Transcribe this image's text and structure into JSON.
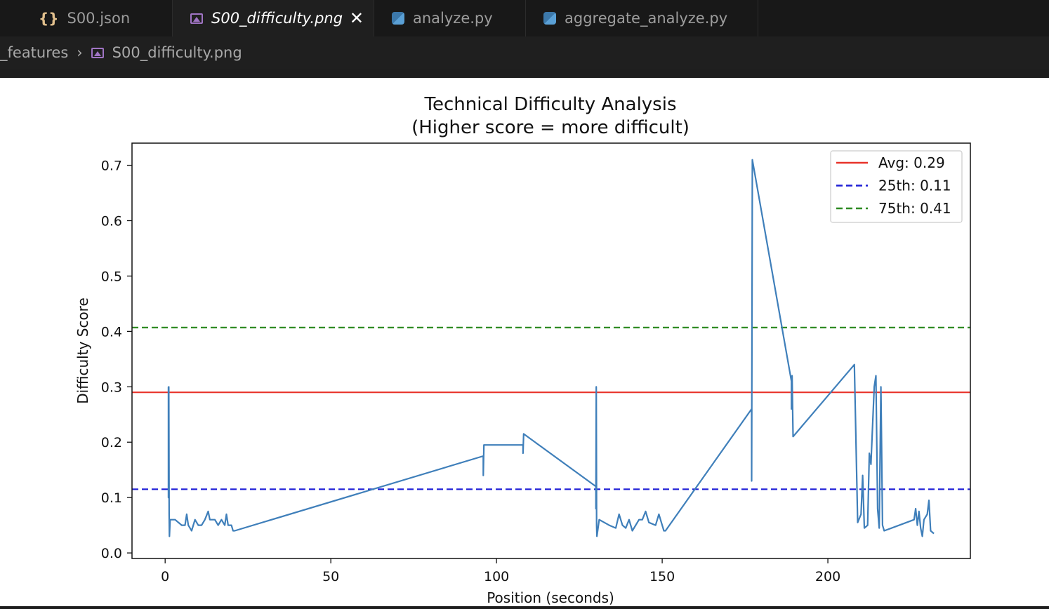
{
  "tabs": [
    {
      "label": "S00.json",
      "icon": "json-braces-icon",
      "active": false
    },
    {
      "label": "S00_difficulty.png",
      "icon": "image-file-icon",
      "active": true
    },
    {
      "label": "analyze.py",
      "icon": "python-icon",
      "active": false
    },
    {
      "label": "aggregate_analyze.py",
      "icon": "python-icon",
      "active": false
    }
  ],
  "breadcrumb": {
    "folder": "_features",
    "file": "S00_difficulty.png"
  },
  "chart_data": {
    "type": "line",
    "title": "Technical Difficulty Analysis",
    "subtitle": "(Higher score = more difficult)",
    "xlabel": "Position (seconds)",
    "ylabel": "Difficulty Score",
    "xlim": [
      -10,
      243
    ],
    "ylim": [
      -0.01,
      0.74
    ],
    "xticks": [
      "0",
      "50",
      "100",
      "150",
      "200"
    ],
    "yticks": [
      "0.0",
      "0.1",
      "0.2",
      "0.3",
      "0.4",
      "0.5",
      "0.6",
      "0.7"
    ],
    "legend_position": "top-right",
    "reference_lines": [
      {
        "label": "Avg: 0.29",
        "y": 0.29,
        "color": "#e8332a",
        "style": "solid"
      },
      {
        "label": "25th: 0.11",
        "y": 0.115,
        "color": "#1f1fd6",
        "style": "dashed"
      },
      {
        "label": "75th: 0.41",
        "y": 0.407,
        "color": "#2e8b22",
        "style": "dashed"
      }
    ],
    "series": [
      {
        "color": "#3f7fba",
        "points": [
          [
            1,
            0.3
          ],
          [
            1,
            0.1
          ],
          [
            1.1,
            0.3
          ],
          [
            1.2,
            0.07
          ],
          [
            1.3,
            0.03
          ],
          [
            1.5,
            0.06
          ],
          [
            3,
            0.06
          ],
          [
            5,
            0.05
          ],
          [
            6,
            0.05
          ],
          [
            6.5,
            0.07
          ],
          [
            7,
            0.05
          ],
          [
            8,
            0.04
          ],
          [
            9,
            0.06
          ],
          [
            10,
            0.05
          ],
          [
            11,
            0.05
          ],
          [
            12,
            0.06
          ],
          [
            13,
            0.075
          ],
          [
            13.5,
            0.06
          ],
          [
            15,
            0.06
          ],
          [
            16,
            0.05
          ],
          [
            17,
            0.06
          ],
          [
            18,
            0.05
          ],
          [
            18.5,
            0.07
          ],
          [
            19,
            0.05
          ],
          [
            20,
            0.05
          ],
          [
            20.5,
            0.04
          ],
          [
            21,
            0.04
          ],
          [
            96,
            0.175
          ],
          [
            96,
            0.14
          ],
          [
            96.2,
            0.195
          ],
          [
            108,
            0.195
          ],
          [
            108,
            0.18
          ],
          [
            108.2,
            0.215
          ],
          [
            130,
            0.12
          ],
          [
            130,
            0.08
          ],
          [
            130.1,
            0.3
          ],
          [
            130.2,
            0.05
          ],
          [
            130.3,
            0.03
          ],
          [
            131,
            0.06
          ],
          [
            134,
            0.05
          ],
          [
            136,
            0.045
          ],
          [
            137,
            0.07
          ],
          [
            138,
            0.05
          ],
          [
            139,
            0.045
          ],
          [
            140,
            0.06
          ],
          [
            141,
            0.04
          ],
          [
            143,
            0.06
          ],
          [
            144,
            0.06
          ],
          [
            145,
            0.075
          ],
          [
            146,
            0.055
          ],
          [
            148,
            0.05
          ],
          [
            149,
            0.07
          ],
          [
            150,
            0.05
          ],
          [
            150.5,
            0.04
          ],
          [
            151,
            0.04
          ],
          [
            177,
            0.26
          ],
          [
            177,
            0.13
          ],
          [
            177.2,
            0.71
          ],
          [
            189,
            0.31
          ],
          [
            189,
            0.26
          ],
          [
            189.2,
            0.32
          ],
          [
            189.5,
            0.21
          ],
          [
            208,
            0.34
          ],
          [
            209,
            0.055
          ],
          [
            210,
            0.07
          ],
          [
            210.5,
            0.14
          ],
          [
            211,
            0.045
          ],
          [
            212,
            0.05
          ],
          [
            212.5,
            0.18
          ],
          [
            213,
            0.16
          ],
          [
            214,
            0.3
          ],
          [
            214.5,
            0.32
          ],
          [
            215,
            0.08
          ],
          [
            215.5,
            0.045
          ],
          [
            216,
            0.3
          ],
          [
            216.5,
            0.05
          ],
          [
            217,
            0.04
          ],
          [
            226,
            0.06
          ],
          [
            226.5,
            0.08
          ],
          [
            227,
            0.05
          ],
          [
            227.5,
            0.075
          ],
          [
            228,
            0.045
          ],
          [
            228.5,
            0.03
          ],
          [
            229,
            0.06
          ],
          [
            230,
            0.07
          ],
          [
            230.5,
            0.095
          ],
          [
            231,
            0.04
          ],
          [
            232,
            0.035
          ]
        ]
      }
    ]
  }
}
